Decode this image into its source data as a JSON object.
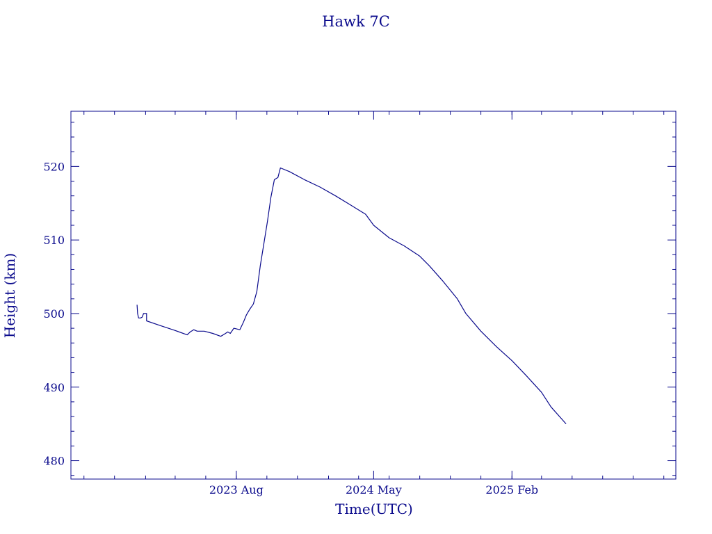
{
  "chart_data": {
    "type": "line",
    "title": "Hawk 7C",
    "xlabel": "Time(UTC)",
    "ylabel": "Height (km)",
    "color": "#0a0a8c",
    "ylim": [
      477.5,
      527.5
    ],
    "yticks": [
      480,
      490,
      500,
      510,
      520
    ],
    "yticks_minor_step": 2,
    "xlim": [
      "2022-09-05",
      "2025-12-25"
    ],
    "xticks": [
      {
        "date": "2023-08-01",
        "label": "2023 Aug"
      },
      {
        "date": "2024-05-01",
        "label": "2024 May"
      },
      {
        "date": "2025-02-01",
        "label": "2025 Feb"
      }
    ],
    "xticks_minor_step_months": 2,
    "grid": false,
    "series": [
      {
        "points": [
          [
            "2023-01-15",
            501.2
          ],
          [
            "2023-01-16",
            500.0
          ],
          [
            "2023-01-18",
            499.4
          ],
          [
            "2023-01-22",
            499.4
          ],
          [
            "2023-01-25",
            499.5
          ],
          [
            "2023-01-28",
            500.0
          ],
          [
            "2023-02-03",
            500.0
          ],
          [
            "2023-02-03",
            499.0
          ],
          [
            "2023-03-01",
            498.4
          ],
          [
            "2023-04-01",
            497.7
          ],
          [
            "2023-04-25",
            497.1
          ],
          [
            "2023-05-01",
            497.5
          ],
          [
            "2023-05-08",
            497.8
          ],
          [
            "2023-05-15",
            497.6
          ],
          [
            "2023-05-29",
            497.6
          ],
          [
            "2023-06-15",
            497.3
          ],
          [
            "2023-07-01",
            496.9
          ],
          [
            "2023-07-08",
            497.2
          ],
          [
            "2023-07-15",
            497.5
          ],
          [
            "2023-07-20",
            497.3
          ],
          [
            "2023-07-27",
            498.0
          ],
          [
            "2023-08-08",
            497.8
          ],
          [
            "2023-08-15",
            498.8
          ],
          [
            "2023-08-21",
            499.8
          ],
          [
            "2023-08-28",
            500.6
          ],
          [
            "2023-09-04",
            501.3
          ],
          [
            "2023-09-11",
            503.0
          ],
          [
            "2023-09-18",
            506.6
          ],
          [
            "2023-09-25",
            509.5
          ],
          [
            "2023-10-02",
            512.5
          ],
          [
            "2023-10-09",
            515.8
          ],
          [
            "2023-10-16",
            518.2
          ],
          [
            "2023-10-23",
            518.5
          ],
          [
            "2023-10-28",
            519.8
          ],
          [
            "2023-11-15",
            519.3
          ],
          [
            "2023-12-15",
            518.2
          ],
          [
            "2024-01-15",
            517.2
          ],
          [
            "2024-02-15",
            516.0
          ],
          [
            "2024-03-15",
            514.8
          ],
          [
            "2024-04-15",
            513.5
          ],
          [
            "2024-05-01",
            512.0
          ],
          [
            "2024-06-01",
            510.3
          ],
          [
            "2024-07-01",
            509.2
          ],
          [
            "2024-08-01",
            507.8
          ],
          [
            "2024-08-20",
            506.5
          ],
          [
            "2024-09-15",
            504.5
          ],
          [
            "2024-10-15",
            502.0
          ],
          [
            "2024-11-01",
            500.0
          ],
          [
            "2024-12-01",
            497.6
          ],
          [
            "2025-01-01",
            495.5
          ],
          [
            "2025-02-01",
            493.6
          ],
          [
            "2025-03-01",
            491.6
          ],
          [
            "2025-04-01",
            489.3
          ],
          [
            "2025-04-20",
            487.3
          ],
          [
            "2025-05-20",
            485.0
          ]
        ]
      }
    ]
  }
}
